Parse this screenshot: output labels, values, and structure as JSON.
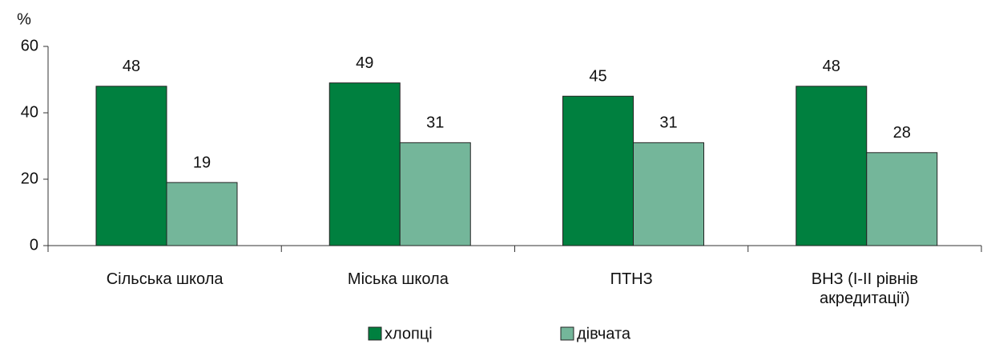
{
  "chart_data": {
    "type": "bar",
    "y_label": "%",
    "categories": [
      "Сільська школа",
      "Міська школа",
      "ПТНЗ",
      "ВНЗ (І-ІІ рівнів\nакредитації)"
    ],
    "series": [
      {
        "name": "хлопці",
        "color": "#00803f",
        "values": [
          48,
          49,
          45,
          48
        ]
      },
      {
        "name": "дівчата",
        "color": "#74b69a",
        "values": [
          19,
          31,
          31,
          28
        ]
      }
    ],
    "ylim": [
      0,
      60
    ],
    "yticks": [
      0,
      20,
      40,
      60
    ],
    "grid": false,
    "legend": "bottom"
  }
}
